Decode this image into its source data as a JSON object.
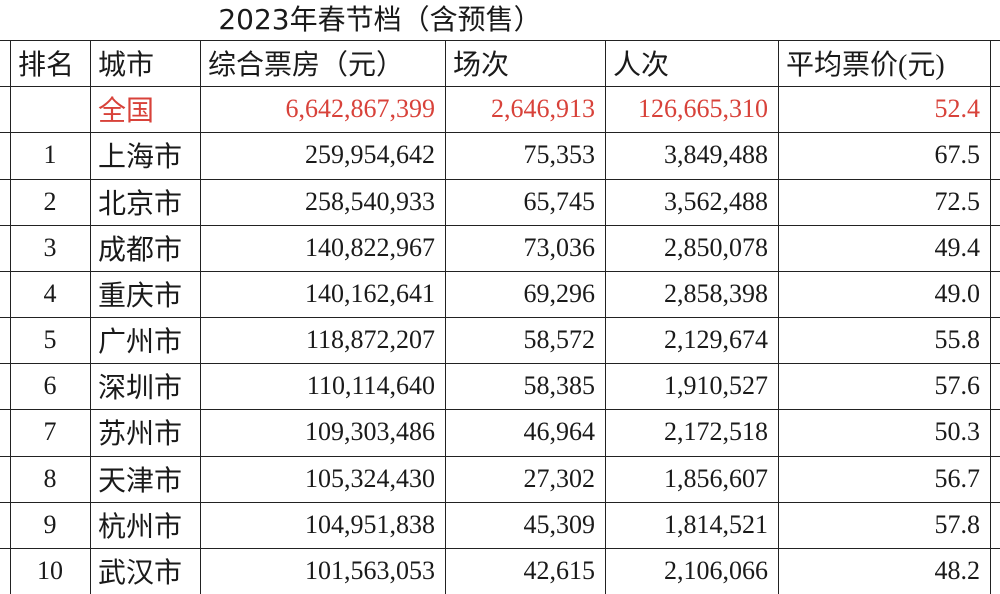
{
  "title": "2023年春节档（含预售）",
  "table": {
    "header": [
      "排名",
      "城市",
      "综合票房（元）",
      "场次",
      "人次",
      "平均票价(元)"
    ],
    "national": [
      "全国",
      "6,642,867,399",
      "2,646,913",
      "126,665,310",
      "52.4"
    ],
    "rows": [
      [
        "1",
        "上海市",
        "259,954,642",
        "75,353",
        "3,849,488",
        "67.5"
      ],
      [
        "2",
        "北京市",
        "258,540,933",
        "65,745",
        "3,562,488",
        "72.5"
      ],
      [
        "3",
        "成都市",
        "140,822,967",
        "73,036",
        "2,850,078",
        "49.4"
      ],
      [
        "4",
        "重庆市",
        "140,162,641",
        "69,296",
        "2,858,398",
        "49.0"
      ],
      [
        "5",
        "广州市",
        "118,872,207",
        "58,572",
        "2,129,674",
        "55.8"
      ],
      [
        "6",
        "深圳市",
        "110,114,640",
        "58,385",
        "1,910,527",
        "57.6"
      ],
      [
        "7",
        "苏州市",
        "109,303,486",
        "46,964",
        "2,172,518",
        "50.3"
      ],
      [
        "8",
        "天津市",
        "105,324,430",
        "27,302",
        "1,856,607",
        "56.7"
      ],
      [
        "9",
        "杭州市",
        "104,951,838",
        "45,309",
        "1,814,521",
        "57.8"
      ],
      [
        "10",
        "武汉市",
        "101,563,053",
        "42,615",
        "2,106,066",
        "48.2"
      ]
    ]
  }
}
